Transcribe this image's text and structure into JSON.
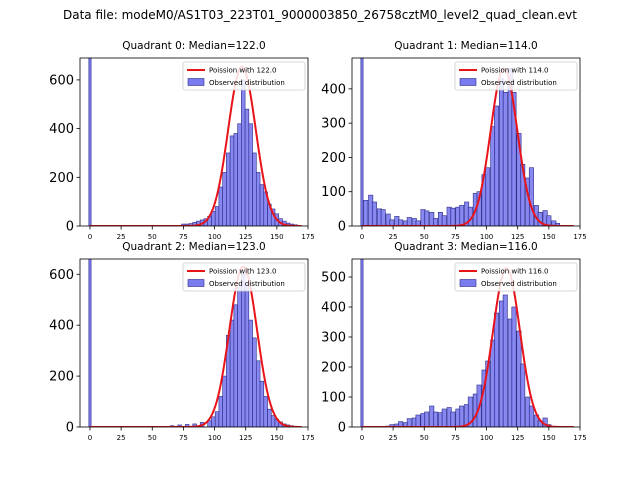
{
  "figure": {
    "title": "Data file: modeM0/AS1T03_223T01_9000003850_26758cztM0_level2_quad_clean.evt"
  },
  "colors": {
    "bar_fill": "#7b7bf0",
    "bar_edge": "#2a2a88",
    "poisson_line": "#e8141a"
  },
  "chart_data": [
    {
      "type": "bar",
      "title": "Quadrant 0: Median=122.0",
      "legend": [
        "Poission with 122.0",
        "Observed distribution"
      ],
      "legend_position": "top-right",
      "bin_width": 3,
      "xlim": [
        -8,
        175
      ],
      "ylim": [
        0,
        690
      ],
      "xticks": [
        0,
        25,
        50,
        75,
        100,
        125,
        150,
        175
      ],
      "yticks": [
        0,
        200,
        400,
        600
      ],
      "spike": {
        "x": 0,
        "value": 690
      },
      "bins": [
        [
          75,
          8
        ],
        [
          78,
          8
        ],
        [
          81,
          10
        ],
        [
          84,
          15
        ],
        [
          87,
          20
        ],
        [
          90,
          25
        ],
        [
          93,
          30
        ],
        [
          96,
          40
        ],
        [
          99,
          60
        ],
        [
          102,
          80
        ],
        [
          105,
          160
        ],
        [
          108,
          220
        ],
        [
          111,
          300
        ],
        [
          114,
          370
        ],
        [
          117,
          380
        ],
        [
          120,
          420
        ],
        [
          123,
          600
        ],
        [
          126,
          480
        ],
        [
          129,
          420
        ],
        [
          132,
          300
        ],
        [
          135,
          220
        ],
        [
          138,
          170
        ],
        [
          141,
          140
        ],
        [
          144,
          90
        ],
        [
          147,
          70
        ],
        [
          150,
          50
        ],
        [
          153,
          30
        ],
        [
          156,
          20
        ],
        [
          159,
          12
        ],
        [
          162,
          8
        ],
        [
          165,
          5
        ]
      ],
      "poisson_mean": 122.0,
      "poisson_peak": 655
    },
    {
      "type": "bar",
      "title": "Quadrant 1: Median=114.0",
      "legend": [
        "Poission with 114.0",
        "Observed distribution"
      ],
      "legend_position": "top-right",
      "bin_width": 3.5,
      "xlim": [
        -8,
        175
      ],
      "ylim": [
        0,
        490
      ],
      "xticks": [
        0,
        25,
        50,
        75,
        100,
        125,
        150,
        175
      ],
      "yticks": [
        0,
        100,
        200,
        300,
        400
      ],
      "spike": {
        "x": 0,
        "value": 490
      },
      "bins": [
        [
          3,
          75
        ],
        [
          7,
          90
        ],
        [
          10,
          70
        ],
        [
          14,
          50
        ],
        [
          17,
          48
        ],
        [
          21,
          35
        ],
        [
          24,
          18
        ],
        [
          28,
          28
        ],
        [
          31,
          18
        ],
        [
          35,
          15
        ],
        [
          38,
          25
        ],
        [
          42,
          22
        ],
        [
          45,
          15
        ],
        [
          49,
          48
        ],
        [
          52,
          44
        ],
        [
          56,
          40
        ],
        [
          59,
          22
        ],
        [
          63,
          40
        ],
        [
          66,
          30
        ],
        [
          70,
          55
        ],
        [
          73,
          52
        ],
        [
          77,
          55
        ],
        [
          80,
          60
        ],
        [
          84,
          70
        ],
        [
          87,
          55
        ],
        [
          91,
          95
        ],
        [
          94,
          100
        ],
        [
          98,
          150
        ],
        [
          101,
          170
        ],
        [
          105,
          290
        ],
        [
          108,
          350
        ],
        [
          112,
          430
        ],
        [
          115,
          390
        ],
        [
          119,
          460
        ],
        [
          122,
          390
        ],
        [
          126,
          270
        ],
        [
          129,
          180
        ],
        [
          133,
          140
        ],
        [
          136,
          170
        ],
        [
          140,
          60
        ],
        [
          143,
          40
        ],
        [
          147,
          45
        ],
        [
          150,
          30
        ],
        [
          154,
          15
        ],
        [
          157,
          8
        ]
      ],
      "poisson_mean": 114.0,
      "poisson_peak": 460
    },
    {
      "type": "bar",
      "title": "Quadrant 2: Median=123.0",
      "legend": [
        "Poission with 123.0",
        "Observed distribution"
      ],
      "legend_position": "top-right",
      "bin_width": 3,
      "xlim": [
        -8,
        175
      ],
      "ylim": [
        0,
        660
      ],
      "xticks": [
        0,
        25,
        50,
        75,
        100,
        125,
        150,
        175
      ],
      "yticks": [
        0,
        200,
        400,
        600
      ],
      "spike": {
        "x": 0,
        "value": 660
      },
      "bins": [
        [
          66,
          5
        ],
        [
          72,
          8
        ],
        [
          78,
          10
        ],
        [
          84,
          12
        ],
        [
          90,
          18
        ],
        [
          96,
          25
        ],
        [
          99,
          40
        ],
        [
          102,
          60
        ],
        [
          105,
          120
        ],
        [
          108,
          200
        ],
        [
          111,
          360
        ],
        [
          114,
          420
        ],
        [
          117,
          480
        ],
        [
          120,
          550
        ],
        [
          123,
          600
        ],
        [
          126,
          560
        ],
        [
          129,
          420
        ],
        [
          132,
          350
        ],
        [
          135,
          260
        ],
        [
          138,
          180
        ],
        [
          141,
          120
        ],
        [
          144,
          70
        ],
        [
          147,
          45
        ],
        [
          150,
          30
        ],
        [
          153,
          20
        ],
        [
          156,
          12
        ],
        [
          159,
          8
        ],
        [
          162,
          5
        ]
      ],
      "poisson_mean": 123.0,
      "poisson_peak": 630
    },
    {
      "type": "bar",
      "title": "Quadrant 3: Median=116.0",
      "legend": [
        "Poission with 116.0",
        "Observed distribution"
      ],
      "legend_position": "top-right",
      "bin_width": 3.5,
      "xlim": [
        -8,
        175
      ],
      "ylim": [
        0,
        560
      ],
      "xticks": [
        0,
        25,
        50,
        75,
        100,
        125,
        150,
        175
      ],
      "yticks": [
        0,
        100,
        200,
        300,
        400,
        500
      ],
      "spike": {
        "x": 0,
        "value": 560
      },
      "bins": [
        [
          21,
          3
        ],
        [
          24,
          8
        ],
        [
          28,
          10
        ],
        [
          31,
          18
        ],
        [
          35,
          15
        ],
        [
          38,
          28
        ],
        [
          42,
          30
        ],
        [
          45,
          40
        ],
        [
          49,
          45
        ],
        [
          52,
          50
        ],
        [
          56,
          70
        ],
        [
          59,
          50
        ],
        [
          63,
          48
        ],
        [
          66,
          60
        ],
        [
          70,
          65
        ],
        [
          73,
          50
        ],
        [
          77,
          60
        ],
        [
          80,
          70
        ],
        [
          84,
          75
        ],
        [
          87,
          100
        ],
        [
          91,
          110
        ],
        [
          94,
          140
        ],
        [
          98,
          190
        ],
        [
          101,
          220
        ],
        [
          105,
          290
        ],
        [
          108,
          380
        ],
        [
          112,
          420
        ],
        [
          115,
          440
        ],
        [
          119,
          360
        ],
        [
          122,
          400
        ],
        [
          126,
          320
        ],
        [
          129,
          210
        ],
        [
          133,
          100
        ],
        [
          136,
          70
        ],
        [
          140,
          40
        ],
        [
          143,
          20
        ],
        [
          147,
          30
        ],
        [
          150,
          8
        ]
      ],
      "poisson_mean": 116.0,
      "poisson_peak": 530
    }
  ]
}
